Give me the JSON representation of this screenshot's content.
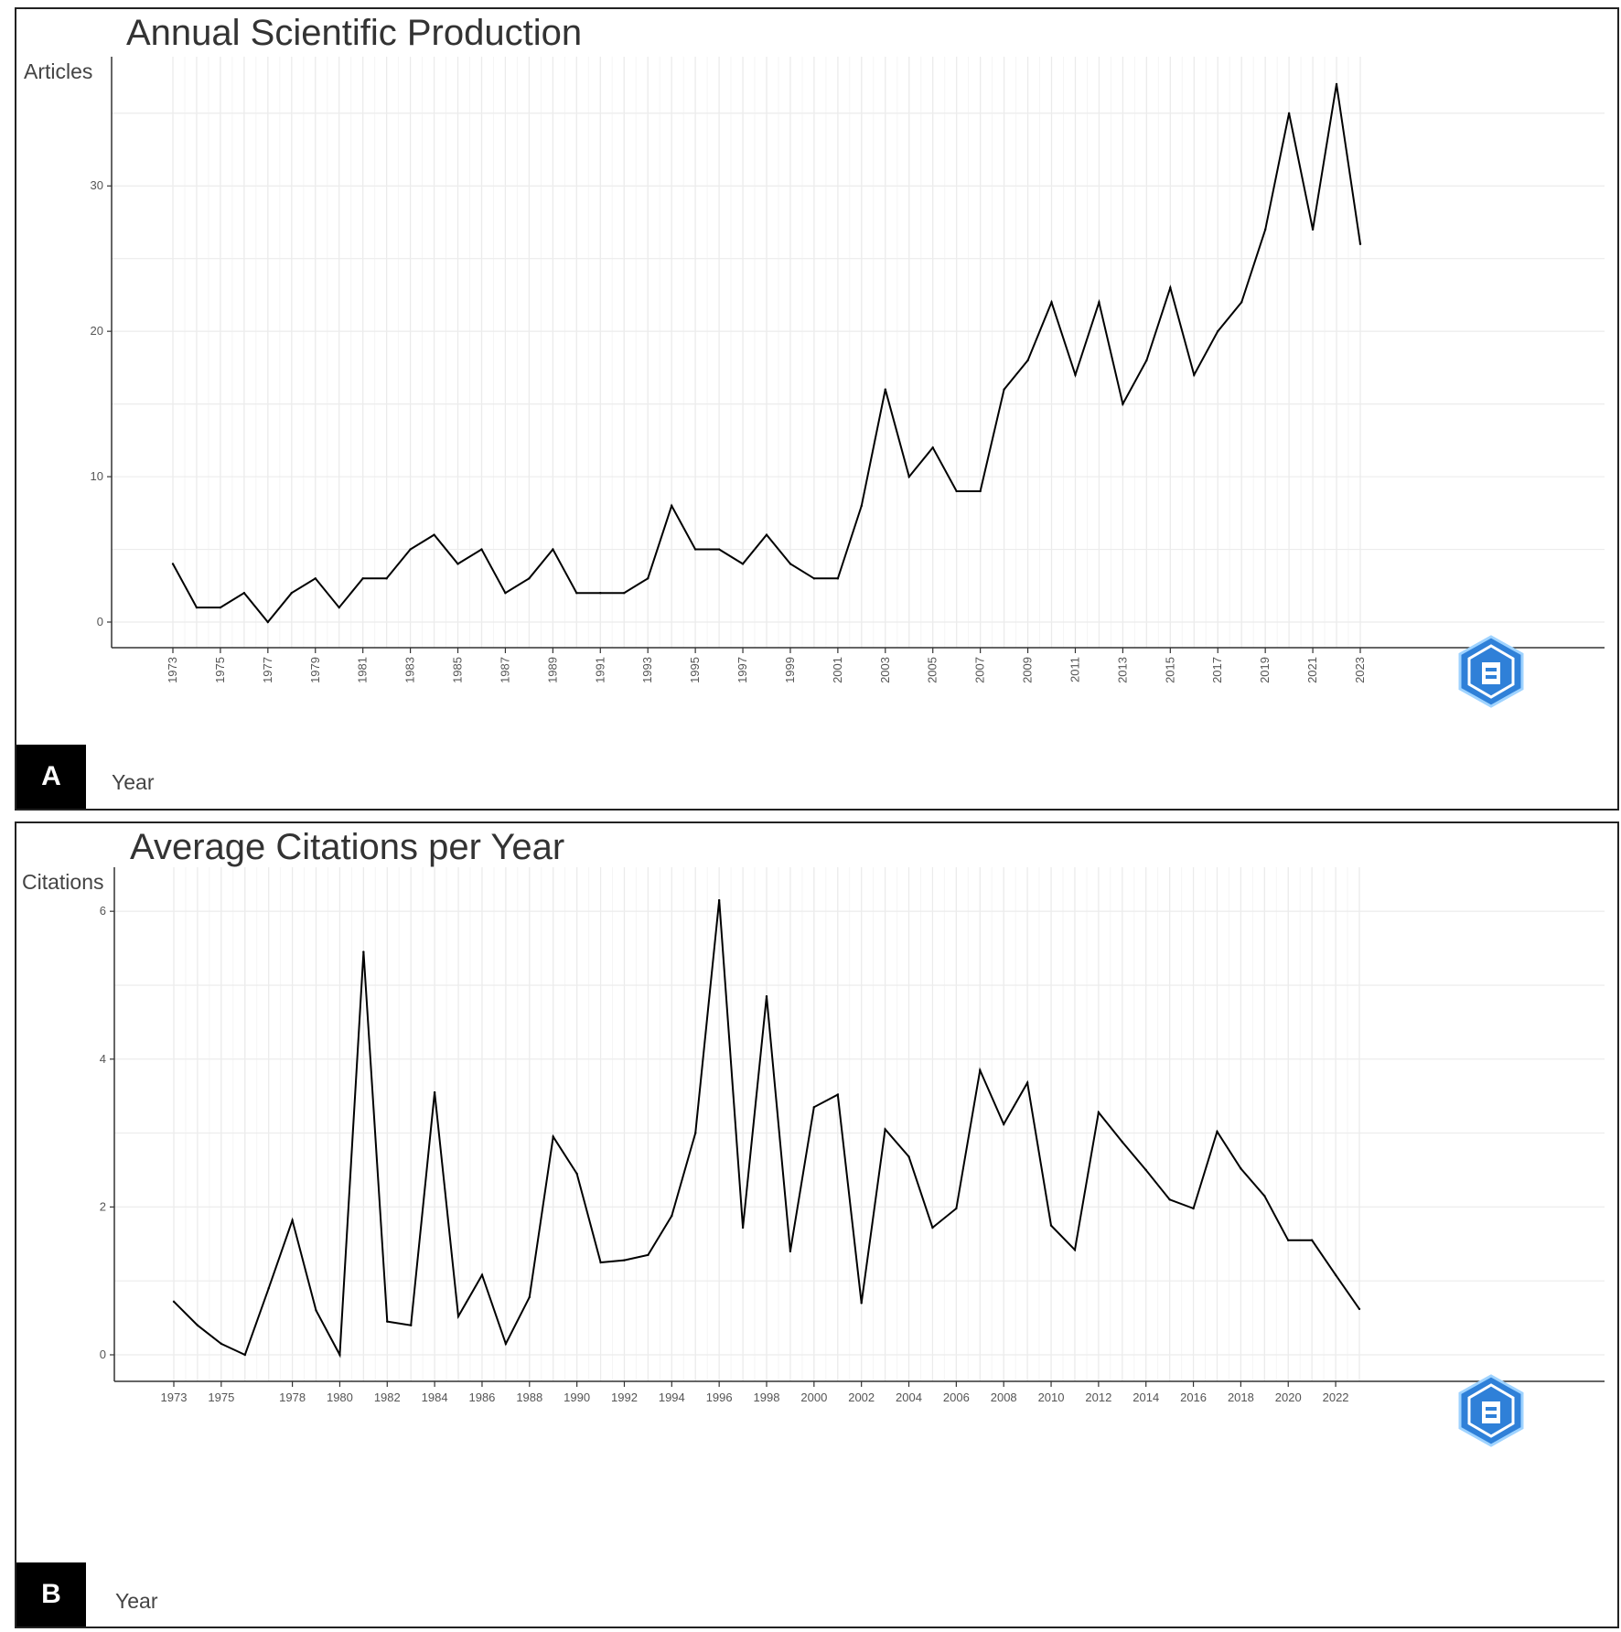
{
  "chart_data": [
    {
      "type": "line",
      "panel": "A",
      "title": "Annual Scientific Production",
      "ylabel": "Articles",
      "xlabel": "Year",
      "ylim": [
        0,
        37
      ],
      "yticks": [
        0,
        10,
        20,
        30
      ],
      "xlim": [
        1973,
        2023
      ],
      "xticks": [
        1973,
        1975,
        1977,
        1979,
        1981,
        1983,
        1985,
        1987,
        1989,
        1991,
        1993,
        1995,
        1997,
        1999,
        2001,
        2003,
        2005,
        2007,
        2009,
        2011,
        2013,
        2015,
        2017,
        2019,
        2021,
        2023
      ],
      "x": [
        1973,
        1974,
        1975,
        1976,
        1977,
        1978,
        1979,
        1980,
        1981,
        1982,
        1983,
        1984,
        1985,
        1986,
        1987,
        1988,
        1989,
        1990,
        1991,
        1992,
        1993,
        1994,
        1995,
        1996,
        1997,
        1998,
        1999,
        2000,
        2001,
        2002,
        2003,
        2004,
        2005,
        2006,
        2007,
        2008,
        2009,
        2010,
        2011,
        2012,
        2013,
        2014,
        2015,
        2016,
        2017,
        2018,
        2019,
        2020,
        2021,
        2022,
        2023
      ],
      "values": [
        4,
        1,
        1,
        2,
        0,
        2,
        3,
        1,
        3,
        3,
        5,
        6,
        4,
        5,
        2,
        3,
        5,
        2,
        2,
        2,
        3,
        8,
        5,
        5,
        4,
        6,
        4,
        3,
        3,
        8,
        16,
        10,
        12,
        9,
        9,
        16,
        18,
        22,
        17,
        22,
        15,
        18,
        23,
        17,
        20,
        22,
        27,
        35,
        27,
        37,
        26
      ],
      "grid": true,
      "color": "#000000"
    },
    {
      "type": "line",
      "panel": "B",
      "title": "Average Citations per Year",
      "ylabel": "Citations",
      "xlabel": "Year",
      "ylim": [
        0,
        6.2
      ],
      "yticks": [
        0,
        2,
        4,
        6
      ],
      "xlim": [
        1973,
        2023
      ],
      "xticks": [
        1973,
        1975,
        1978,
        1980,
        1982,
        1984,
        1986,
        1988,
        1990,
        1992,
        1994,
        1996,
        1998,
        2000,
        2002,
        2004,
        2006,
        2008,
        2010,
        2012,
        2014,
        2016,
        2018,
        2020,
        2022
      ],
      "x": [
        1973,
        1974,
        1975,
        1976,
        1977,
        1978,
        1979,
        1980,
        1981,
        1982,
        1983,
        1984,
        1985,
        1986,
        1987,
        1988,
        1989,
        1990,
        1991,
        1992,
        1993,
        1994,
        1995,
        1996,
        1997,
        1998,
        1999,
        2000,
        2001,
        2002,
        2003,
        2004,
        2005,
        2006,
        2007,
        2008,
        2009,
        2010,
        2011,
        2012,
        2013,
        2014,
        2015,
        2016,
        2017,
        2018,
        2019,
        2020,
        2021,
        2022,
        2023
      ],
      "values": [
        0.72,
        0.4,
        0.15,
        0.0,
        0.9,
        1.82,
        0.6,
        0.0,
        5.45,
        0.45,
        0.4,
        3.55,
        0.52,
        1.08,
        0.15,
        0.78,
        2.95,
        2.45,
        1.25,
        1.28,
        1.35,
        1.88,
        3.0,
        6.15,
        1.72,
        4.85,
        1.4,
        3.35,
        3.52,
        0.7,
        3.05,
        2.68,
        1.72,
        1.98,
        3.85,
        3.12,
        3.68,
        1.75,
        1.42,
        3.28,
        2.88,
        2.5,
        2.1,
        1.98,
        3.02,
        2.52,
        2.15,
        1.55,
        1.55,
        1.08,
        0.62
      ],
      "grid": true,
      "color": "#000000"
    }
  ],
  "panels": {
    "a": {
      "tag": "A"
    },
    "b": {
      "tag": "B"
    }
  },
  "logo_icon": "bibliometrix-hexagon-logo-icon"
}
